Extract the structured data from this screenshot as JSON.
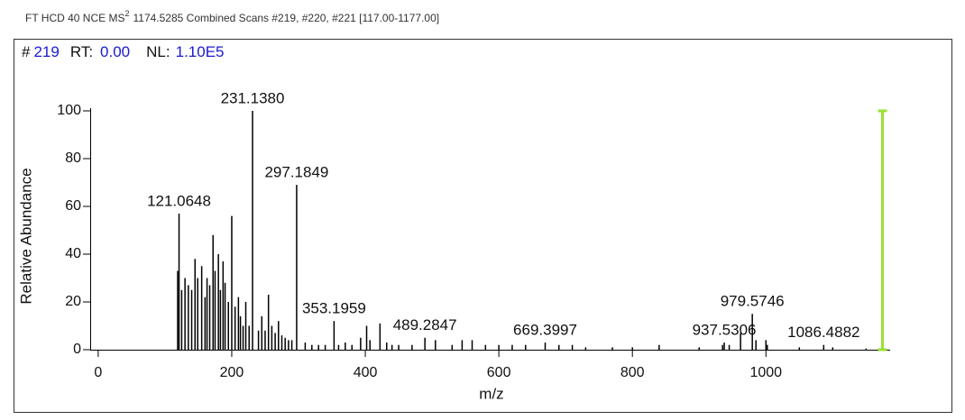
{
  "chart_data": {
    "type": "stick",
    "header": {
      "prefix": "FT HCD 40 NCE MS",
      "superscript": "2",
      "suffix": "1174.5285 Combined Scans #219, #220, #221 [117.00-1177.00]"
    },
    "scan_info": {
      "hash": "#",
      "scan": "219",
      "rt_label": "RT:",
      "rt": "0.00",
      "nl_label": "NL:",
      "nl": "1.10E5"
    },
    "x_label": "m/z",
    "y_label": "Relative Abundance",
    "xlim": [
      -12,
      1186
    ],
    "ylim": [
      0,
      100
    ],
    "xticks": [
      0,
      200,
      400,
      600,
      800,
      1000
    ],
    "yticks": [
      0,
      20,
      40,
      60,
      80,
      100
    ],
    "marker_x": 1174.5285,
    "marker_color": "#99e033",
    "series": [
      {
        "color": "#000000",
        "x": [
          119,
          121.0648,
          125,
          130,
          135,
          140,
          145,
          149,
          155,
          160,
          163,
          167,
          172,
          175,
          180,
          183,
          187,
          190,
          195,
          200,
          205,
          210,
          213,
          217,
          221,
          226,
          231.138,
          240,
          245,
          250,
          255,
          260,
          265,
          270,
          275,
          280,
          285,
          290,
          297.1849,
          310,
          320,
          330,
          340,
          353.1959,
          360,
          370,
          380,
          393,
          402,
          407,
          422,
          432,
          440,
          450,
          470,
          489.2847,
          505,
          530,
          545,
          560,
          580,
          600,
          620,
          640,
          669.3997,
          690,
          710,
          730,
          770,
          800,
          840,
          900,
          935,
          937.5306,
          945,
          962,
          979.5746,
          985,
          1000,
          1002,
          1050,
          1086.4882,
          1100,
          1150
        ],
        "values": [
          33,
          57,
          25,
          30,
          27,
          25,
          38,
          30,
          35,
          22,
          30,
          27,
          48,
          33,
          40,
          25,
          37,
          28,
          20,
          56,
          18,
          22,
          14,
          10,
          20,
          10,
          100,
          8,
          14,
          8,
          23,
          10,
          7,
          12,
          6,
          5,
          4,
          4,
          69,
          3,
          2,
          2,
          2,
          12,
          2,
          3,
          2,
          5,
          10,
          4,
          11,
          3,
          2,
          2,
          2,
          5,
          4,
          2,
          4,
          4,
          2,
          2,
          2,
          2,
          3,
          2,
          2,
          1,
          1,
          1,
          2,
          1,
          2,
          3,
          2,
          7,
          15,
          4,
          4,
          2,
          1,
          2,
          1,
          0.5
        ],
        "x_labels": [
          null,
          "121.0648",
          null,
          null,
          null,
          null,
          null,
          null,
          null,
          null,
          null,
          null,
          null,
          null,
          null,
          null,
          null,
          null,
          null,
          null,
          null,
          null,
          null,
          null,
          null,
          null,
          "231.1380",
          null,
          null,
          null,
          null,
          null,
          null,
          null,
          null,
          null,
          null,
          null,
          "297.1849",
          null,
          null,
          null,
          null,
          "353.1959",
          null,
          null,
          null,
          null,
          null,
          null,
          null,
          null,
          null,
          null,
          null,
          "489.2847",
          null,
          null,
          null,
          null,
          null,
          null,
          null,
          null,
          "669.3997",
          null,
          null,
          null,
          null,
          null,
          null,
          null,
          null,
          "937.5306",
          null,
          null,
          "979.5746",
          null,
          null,
          null,
          null,
          "1086.4882",
          null,
          null
        ]
      }
    ]
  }
}
